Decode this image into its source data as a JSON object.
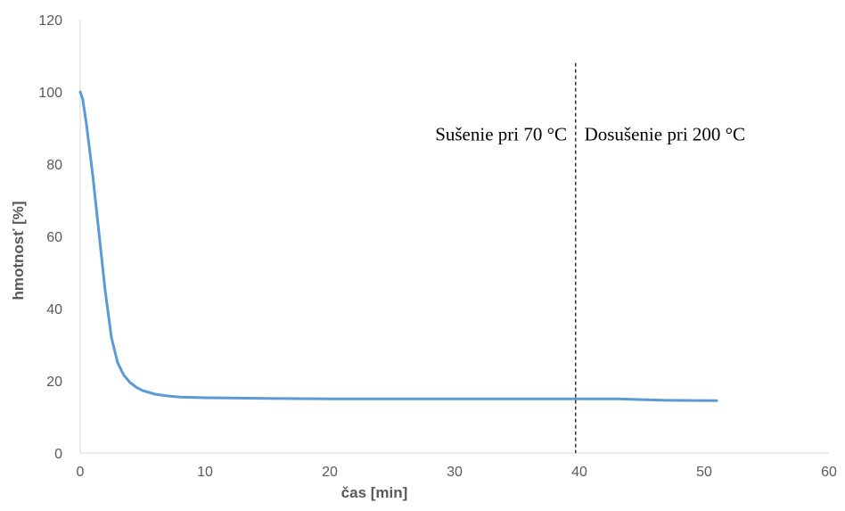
{
  "chart_data": {
    "type": "line",
    "title": "",
    "xlabel": "čas [min]",
    "ylabel": "hmotnosť [%]",
    "xlim": [
      0,
      60
    ],
    "ylim": [
      0,
      120
    ],
    "x_ticks": [
      0,
      10,
      20,
      30,
      40,
      50,
      60
    ],
    "y_ticks": [
      0,
      20,
      40,
      60,
      80,
      100,
      120
    ],
    "grid": false,
    "legend": "none",
    "series": [
      {
        "color": "#5b9bd5",
        "x": [
          0,
          0.2,
          0.5,
          1.0,
          1.5,
          2.0,
          2.5,
          3.0,
          3.5,
          4.0,
          4.5,
          5.0,
          6.0,
          7.0,
          8.0,
          10.0,
          15.0,
          20.0,
          25.0,
          30.0,
          35.0,
          40.0,
          43.0,
          45.0,
          47.0,
          51.0
        ],
        "y": [
          100,
          98,
          91,
          77,
          61,
          45,
          32,
          25,
          21.5,
          19.5,
          18.2,
          17.3,
          16.3,
          15.8,
          15.5,
          15.3,
          15.1,
          15.0,
          15.0,
          15.0,
          15.0,
          15.0,
          15.0,
          14.8,
          14.6,
          14.5
        ]
      }
    ],
    "annotations": [
      {
        "type": "vline",
        "x": 39.7,
        "y_top": 108,
        "style": "dashed",
        "color": "#000000"
      },
      {
        "type": "text",
        "text": "Sušenie pri 70 °C",
        "x": 39.0,
        "y": 86.5,
        "anchor": "end"
      },
      {
        "type": "text",
        "text": "Dosušenie pri 200 °C",
        "x": 40.4,
        "y": 86.5,
        "anchor": "start"
      }
    ]
  }
}
